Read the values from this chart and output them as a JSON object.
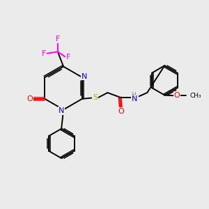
{
  "background_color": "#ebebeb",
  "fig_size": [
    3.0,
    3.0
  ],
  "dpi": 100,
  "atom_colors": {
    "N": "#0000ee",
    "O": "#ff0000",
    "S": "#aaaa00",
    "F": "#ff00ff",
    "H": "#808080",
    "C": "#000000"
  },
  "bond_color": "#000000",
  "bond_width": 1.4
}
